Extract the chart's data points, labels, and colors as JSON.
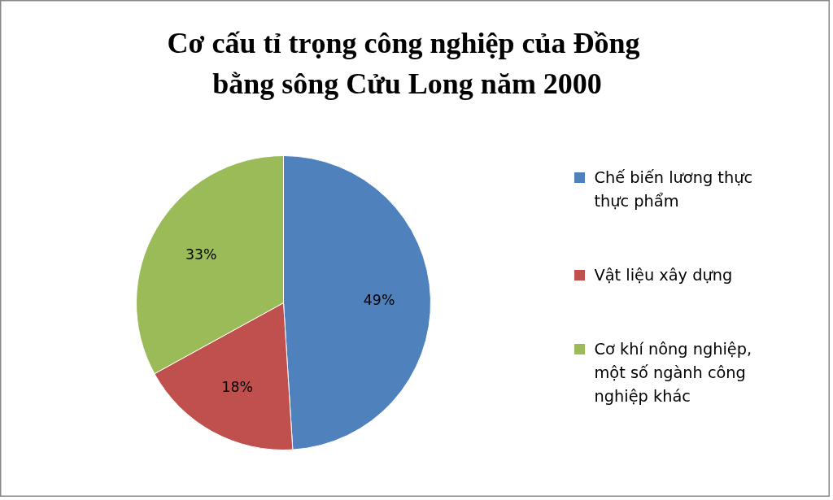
{
  "chart_data": {
    "type": "pie",
    "title": "Cơ cấu tỉ trọng  công nghiệp của Đồng bằng sông Cửu Long năm 2000",
    "categories": [
      "Chế biến lương thực thực phẩm",
      "Vật liệu xây dựng",
      "Cơ khí nông nghiệp, một số ngành công nghiệp khác"
    ],
    "values": [
      49,
      18,
      33
    ],
    "value_labels": [
      "49%",
      "18%",
      "33%"
    ],
    "colors": [
      "#4f81bd",
      "#c0504d",
      "#9bbb59"
    ],
    "legend": "right"
  }
}
